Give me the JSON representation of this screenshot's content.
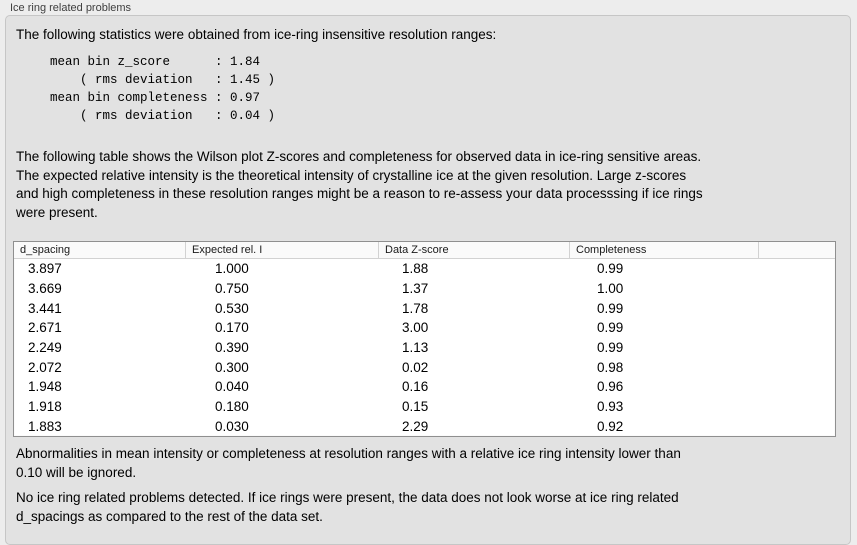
{
  "panel": {
    "title": "Ice ring related problems"
  },
  "intro": {
    "text": "The following statistics were obtained from ice-ring insensitive resolution ranges:",
    "stats_block": "mean bin z_score      : 1.84\n    ( rms deviation   : 1.45 )\nmean bin completeness : 0.97\n    ( rms deviation   : 0.04 )"
  },
  "description": {
    "text": "The following table shows the Wilson plot Z-scores and completeness for observed data in ice-ring sensitive areas.\nThe expected relative intensity is the theoretical intensity of crystalline ice at the given resolution. Large z-scores\nand high completeness in these resolution ranges might be a reason to re-assess your data processsing if ice rings\nwere present."
  },
  "table": {
    "columns": [
      "d_spacing",
      "Expected rel. I",
      "Data Z-score",
      "Completeness"
    ],
    "rows": [
      [
        "3.897",
        "1.000",
        "1.88",
        "0.99"
      ],
      [
        "3.669",
        "0.750",
        "1.37",
        "1.00"
      ],
      [
        "3.441",
        "0.530",
        "1.78",
        "0.99"
      ],
      [
        "2.671",
        "0.170",
        "3.00",
        "0.99"
      ],
      [
        "2.249",
        "0.390",
        "1.13",
        "0.99"
      ],
      [
        "2.072",
        "0.300",
        "0.02",
        "0.98"
      ],
      [
        "1.948",
        "0.040",
        "0.16",
        "0.96"
      ],
      [
        "1.918",
        "0.180",
        "0.15",
        "0.93"
      ],
      [
        "1.883",
        "0.030",
        "2.29",
        "0.92"
      ]
    ]
  },
  "footnote": {
    "text": "Abnormalities in mean intensity or completeness at resolution ranges with a relative ice ring intensity lower than\n0.10 will be ignored."
  },
  "conclusion": {
    "text": "No ice ring related problems detected. If ice rings were present, the data does not look worse at ice ring related\nd_spacings as compared to the rest of the data set."
  },
  "colors": {
    "page-bg": "#ededed",
    "box-bg": "#e2e2e2",
    "box-border": "#c6c6c6",
    "title-fg": "#3e3e3e",
    "table-border": "#8f8f8f",
    "header-bg": "#fafafa",
    "header-sep": "#d2d2d2"
  }
}
